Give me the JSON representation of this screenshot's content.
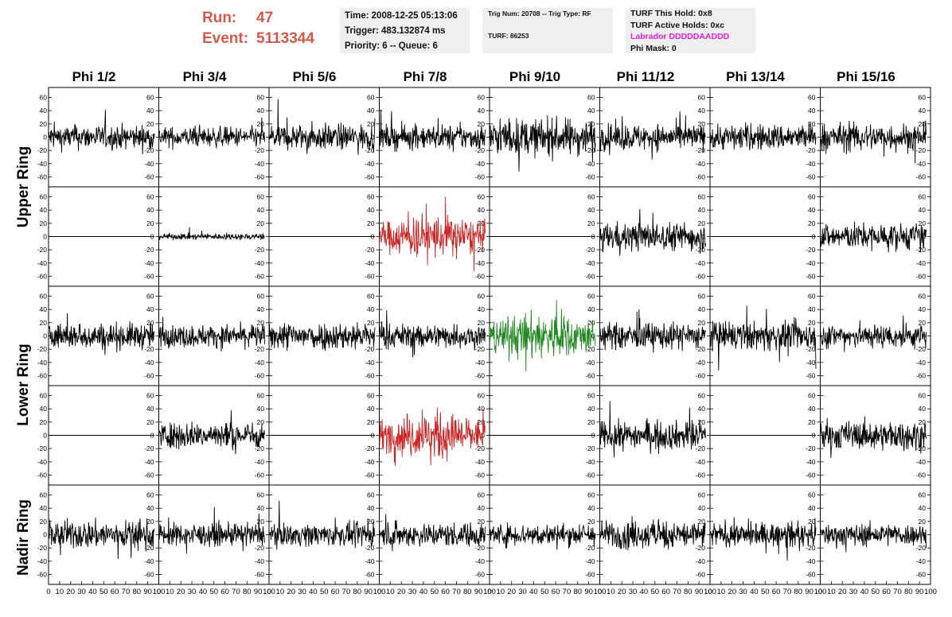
{
  "header": {
    "run_label": "Run:",
    "run_value": "47",
    "event_label": "Event:",
    "event_value": "5113344",
    "time": "Time: 2008-12-25 05:13:06",
    "trigger": "Trigger: 483.132874 ms",
    "priority": "Priority: 6 -- Queue: 6",
    "trig_num": "Trig Num: 20708 -- Trig Type: RF",
    "turf": "TURF: 86253",
    "turf_this_hold": "TURF This Hold: 0x8",
    "turf_active_holds": "TURF Active Holds: 0xc",
    "labrador": "Labrador DDDDDAADDD",
    "phi_mask": "Phi Mask: 0"
  },
  "chart_data": {
    "type": "line",
    "columns": [
      "Phi 1/2",
      "Phi 3/4",
      "Phi 5/6",
      "Phi 7/8",
      "Phi 9/10",
      "Phi 11/12",
      "Phi 13/14",
      "Phi 15/16"
    ],
    "rows": [
      "Upper Ring",
      "Upper Ring",
      "Lower Ring",
      "Lower Ring",
      "Nadir Ring"
    ],
    "ring_labels": [
      "Upper Ring",
      "Lower Ring",
      "Nadir Ring"
    ],
    "ylim": [
      -75,
      75
    ],
    "y_ticks": [
      -60,
      -40,
      -20,
      0,
      20,
      40,
      60
    ],
    "xlim": [
      0,
      100
    ],
    "x_tick_labels": [
      "0",
      "10",
      "20",
      "30",
      "40",
      "50",
      "60",
      "70",
      "80",
      "90",
      "100"
    ],
    "trace_x_range": [
      0,
      96
    ],
    "colors": {
      "normal": "#000000",
      "triggered": "#cc2222",
      "max": "#228822"
    },
    "panels": [
      [
        {
          "a": 12,
          "c": "normal"
        },
        {
          "a": 10,
          "c": "normal"
        },
        {
          "a": 13,
          "c": "normal"
        },
        {
          "a": 12,
          "c": "normal"
        },
        {
          "a": 18,
          "c": "normal"
        },
        {
          "a": 13,
          "c": "normal"
        },
        {
          "a": 13,
          "c": "normal"
        },
        {
          "a": 14,
          "c": "normal"
        }
      ],
      [
        {
          "a": 0,
          "c": "normal"
        },
        {
          "a": 3,
          "c": "normal"
        },
        {
          "a": 0,
          "c": "normal"
        },
        {
          "a": 18,
          "c": "triggered"
        },
        {
          "a": 0,
          "c": "normal"
        },
        {
          "a": 14,
          "c": "normal"
        },
        {
          "a": 0,
          "c": "normal"
        },
        {
          "a": 13,
          "c": "normal"
        }
      ],
      [
        {
          "a": 13,
          "c": "normal"
        },
        {
          "a": 11,
          "c": "normal"
        },
        {
          "a": 14,
          "c": "normal"
        },
        {
          "a": 12,
          "c": "normal"
        },
        {
          "a": 19,
          "c": "max"
        },
        {
          "a": 13,
          "c": "normal"
        },
        {
          "a": 14,
          "c": "normal"
        },
        {
          "a": 12,
          "c": "normal"
        }
      ],
      [
        {
          "a": 0,
          "c": "normal"
        },
        {
          "a": 13,
          "c": "normal"
        },
        {
          "a": 0,
          "c": "normal"
        },
        {
          "a": 19,
          "c": "triggered"
        },
        {
          "a": 0,
          "c": "normal"
        },
        {
          "a": 14,
          "c": "normal"
        },
        {
          "a": 0,
          "c": "normal"
        },
        {
          "a": 14,
          "c": "normal"
        }
      ],
      [
        {
          "a": 14,
          "c": "normal"
        },
        {
          "a": 11,
          "c": "normal"
        },
        {
          "a": 11,
          "c": "normal"
        },
        {
          "a": 12,
          "c": "normal"
        },
        {
          "a": 11,
          "c": "normal"
        },
        {
          "a": 14,
          "c": "normal"
        },
        {
          "a": 12,
          "c": "normal"
        },
        {
          "a": 11,
          "c": "normal"
        }
      ]
    ]
  }
}
